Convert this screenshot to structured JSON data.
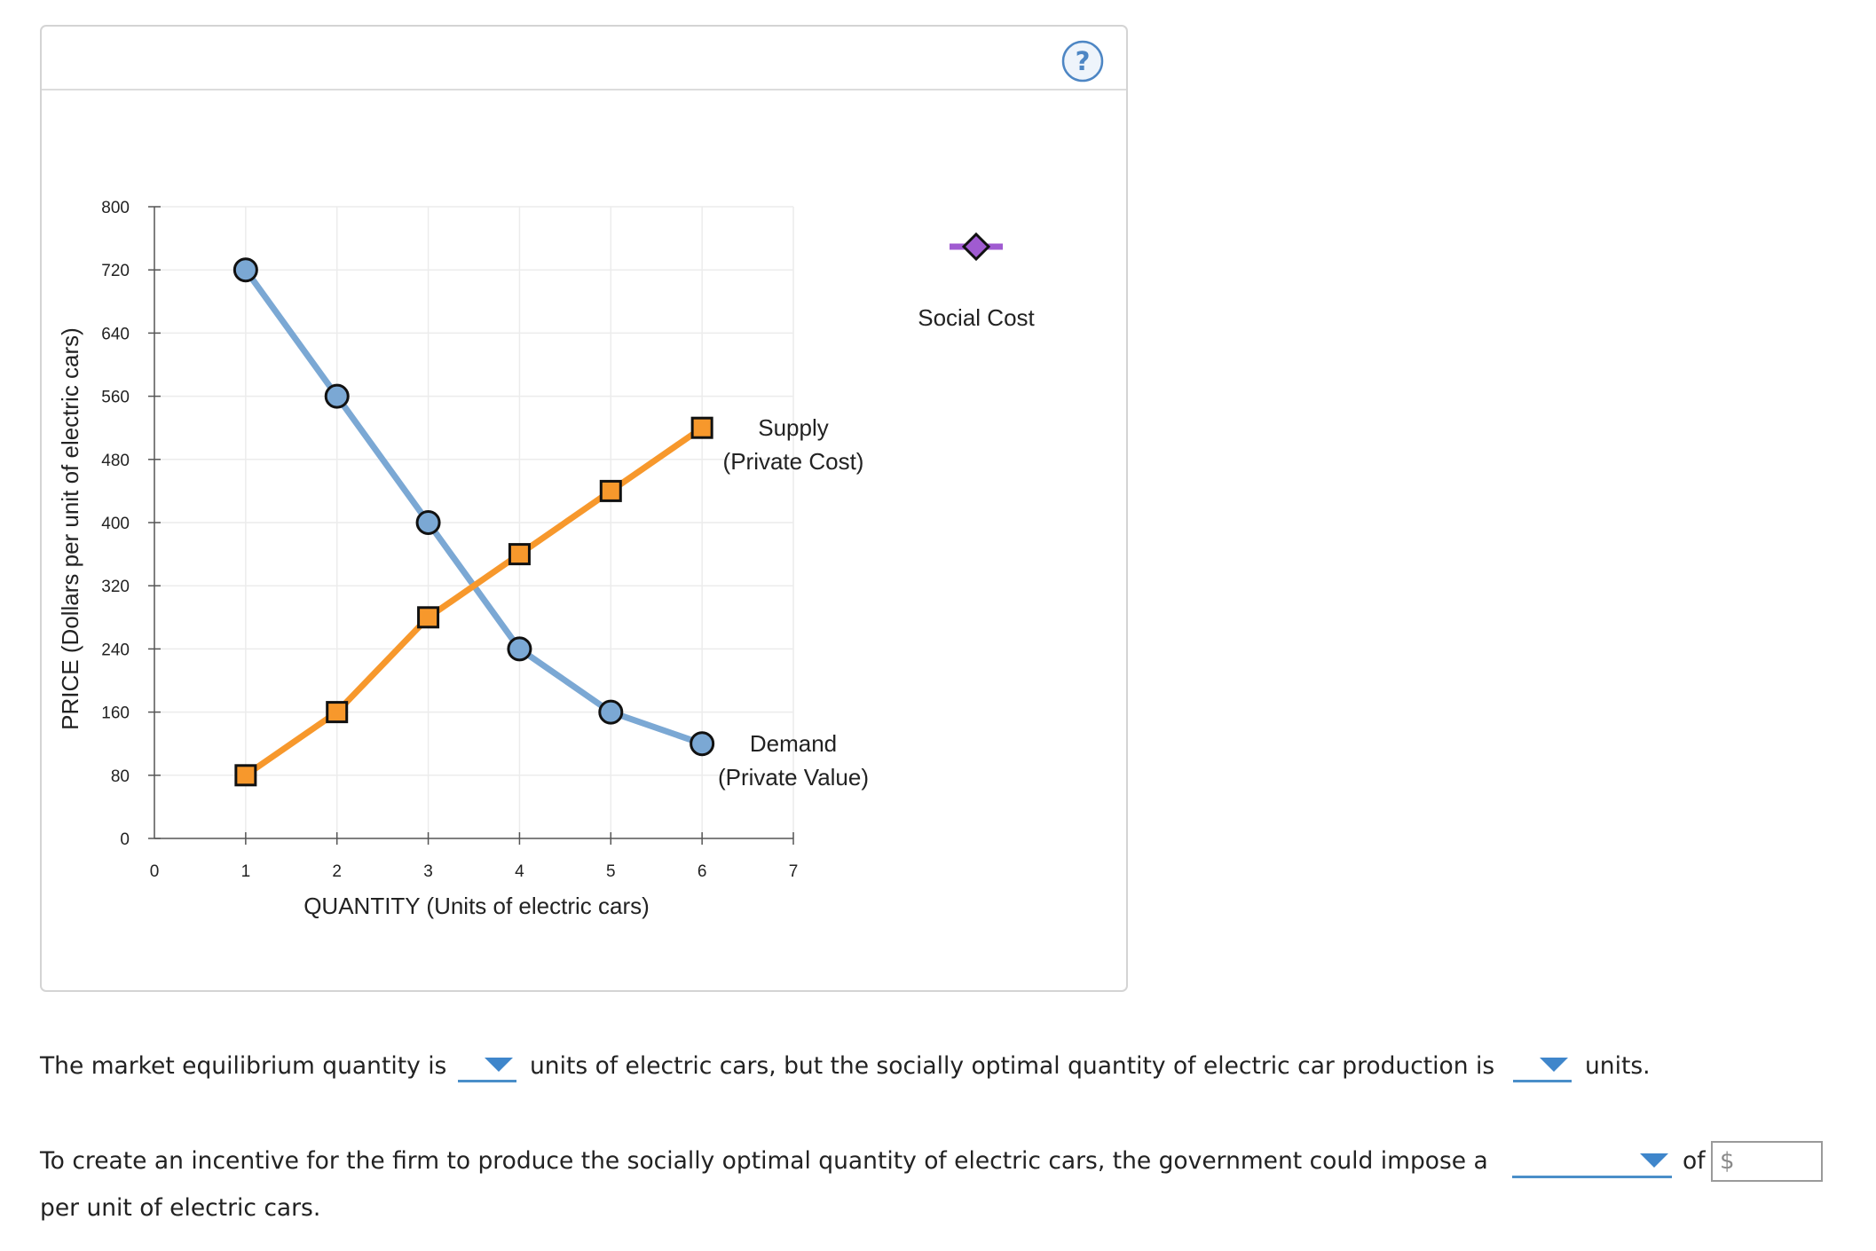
{
  "chart_data": {
    "type": "line",
    "xlabel": "QUANTITY (Units of electric cars)",
    "ylabel": "PRICE (Dollars per unit of electric cars)",
    "xlim": [
      0,
      7
    ],
    "ylim": [
      0,
      800
    ],
    "x_ticks": [
      "0",
      "1",
      "2",
      "3",
      "4",
      "5",
      "6",
      "7"
    ],
    "y_ticks": [
      "0",
      "80",
      "160",
      "240",
      "320",
      "400",
      "480",
      "560",
      "640",
      "720",
      "800"
    ],
    "grid": true,
    "series": [
      {
        "name": "Demand (Private Value)",
        "label_lines": [
          "Demand",
          "(Private Value)"
        ],
        "color": "#7ba8d4",
        "marker": "circle",
        "x": [
          1,
          2,
          3,
          4,
          5,
          6
        ],
        "y": [
          720,
          560,
          400,
          240,
          160,
          120
        ]
      },
      {
        "name": "Supply (Private Cost)",
        "label_lines": [
          "Supply",
          "(Private Cost)"
        ],
        "color": "#f7982c",
        "marker": "square",
        "x": [
          1,
          2,
          3,
          4,
          5,
          6
        ],
        "y": [
          80,
          160,
          280,
          360,
          440,
          520
        ]
      }
    ],
    "palette_tool": {
      "label": "Social Cost",
      "color": "#a05bd1",
      "marker": "diamond"
    }
  },
  "help": {
    "icon": "question-mark-icon",
    "symbol": "?"
  },
  "questions": {
    "q1_text_a": "The market equilibrium quantity is",
    "q1_text_b": "units of electric cars, but the socially optimal quantity of electric car production is",
    "q1_text_c": "units.",
    "q2_text_a": "To create an incentive for the firm to produce the socially optimal quantity of electric cars, the government could impose a",
    "q2_text_b": "of",
    "q2_text_c": "per unit of electric cars.",
    "currency_symbol": "$",
    "dropdown_arrow_icon": "caret-down-icon"
  }
}
